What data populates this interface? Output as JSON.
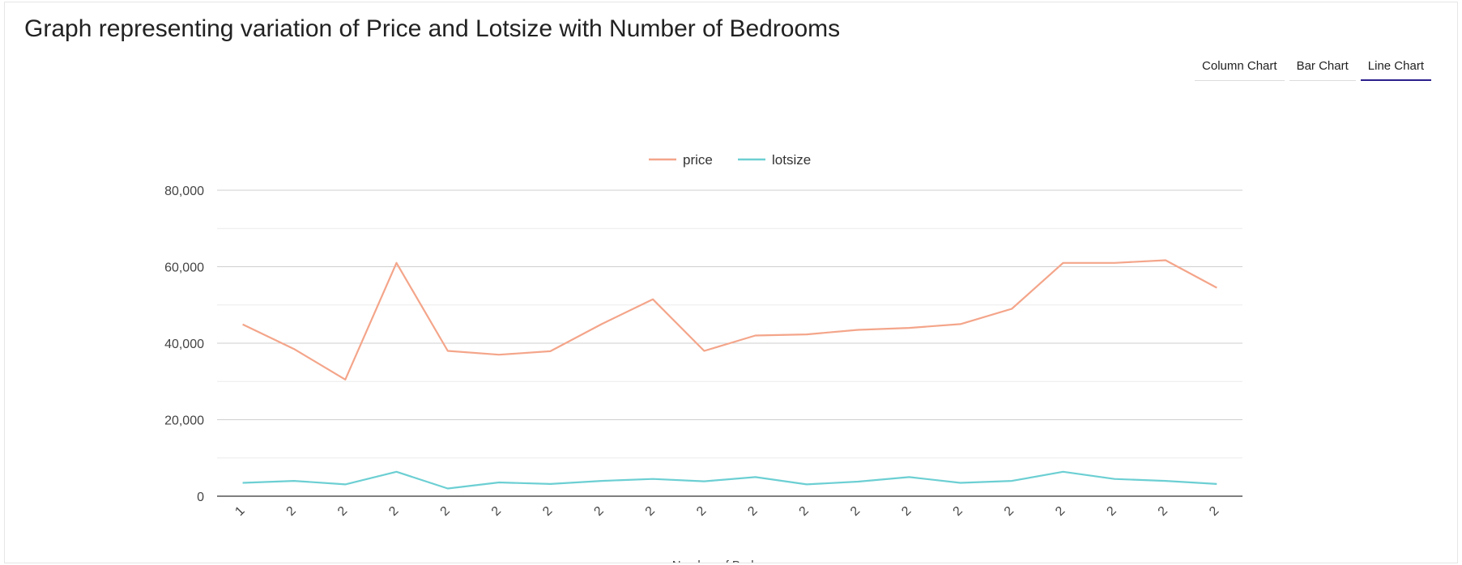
{
  "header": {
    "title": "Graph representing variation of Price and Lotsize with Number of Bedrooms"
  },
  "tabs": [
    {
      "label": "Column Chart",
      "active": false
    },
    {
      "label": "Bar Chart",
      "active": false
    },
    {
      "label": "Line Chart",
      "active": true
    }
  ],
  "chart_data": {
    "type": "line",
    "title": "Graph representing variation of Price and Lotsize with Number of Bedrooms",
    "xlabel": "Number of Bedrooms",
    "ylabel": "",
    "ylim": [
      0,
      80000
    ],
    "yticks": [
      0,
      20000,
      40000,
      60000,
      80000
    ],
    "yticklabels": [
      "0",
      "20,000",
      "40,000",
      "60,000",
      "80,000"
    ],
    "grid": true,
    "legend_position": "top-center",
    "categories": [
      "1",
      "2",
      "2",
      "2",
      "2",
      "2",
      "2",
      "2",
      "2",
      "2",
      "2",
      "2",
      "2",
      "2",
      "2",
      "2",
      "2",
      "2",
      "2",
      "2"
    ],
    "series": [
      {
        "name": "price",
        "color": "#f4a58a",
        "values": [
          44900,
          38500,
          30500,
          61000,
          38000,
          37000,
          37900,
          45000,
          51500,
          38000,
          42000,
          42300,
          43500,
          44000,
          45000,
          49000,
          61000,
          61000,
          61700,
          54500
        ]
      },
      {
        "name": "lotsize",
        "color": "#6ccfd3",
        "values": [
          3500,
          4000,
          3100,
          6400,
          2000,
          3600,
          3200,
          4000,
          4500,
          3900,
          5000,
          3100,
          3800,
          5000,
          3500,
          4000,
          6400,
          4500,
          4000,
          3200
        ]
      }
    ]
  }
}
